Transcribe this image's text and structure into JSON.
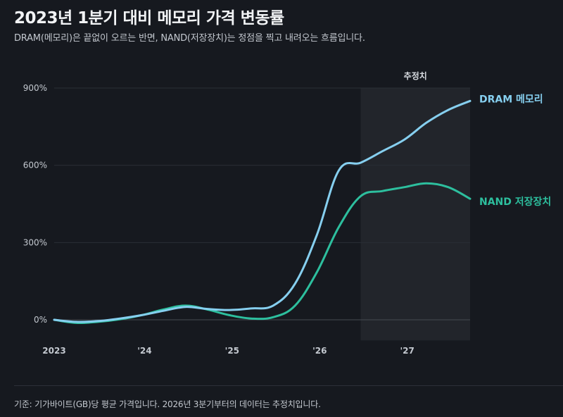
{
  "title": "2023년 1분기 대비 메모리 가격 변동률",
  "subtitle": "DRAM(메모리)은 끝없이 오르는 반면, NAND(저장장치)는 정점을 찍고 내려오는 흐름입니다.",
  "footer": "기준: 기가바이트(GB)당 평균 가격입니다. 2026년 3분기부터의 데이터는 추정치입니다.",
  "colors": {
    "background": "#16191f",
    "dram": "#86cfef",
    "nand": "#2dbf9e",
    "forecast_band": "#22252b",
    "grid": "#2a2e35"
  },
  "chart_data": {
    "type": "line",
    "ylim": [
      -80,
      900
    ],
    "y_ticks": [
      {
        "value": 0,
        "label": "0%"
      },
      {
        "value": 300,
        "label": "300%"
      },
      {
        "value": 600,
        "label": "600%"
      },
      {
        "value": 900,
        "label": "900%"
      }
    ],
    "x_range": [
      "2023-01",
      "2027-10"
    ],
    "x_ticks": [
      {
        "value": "2023-01",
        "label": "2023"
      },
      {
        "value": "2024-01",
        "label": "'24"
      },
      {
        "value": "2025-01",
        "label": "'25"
      },
      {
        "value": "2026-01",
        "label": "'26"
      },
      {
        "value": "2027-01",
        "label": "'27"
      }
    ],
    "forecast": {
      "start": "2026-07",
      "end": "2027-10",
      "label": "추정치"
    },
    "series": [
      {
        "name": "DRAM 메모리",
        "color": "#86cfef",
        "points": [
          [
            "2023-01",
            0
          ],
          [
            "2023-04",
            -8
          ],
          [
            "2023-07",
            -5
          ],
          [
            "2023-10",
            5
          ],
          [
            "2024-01",
            18
          ],
          [
            "2024-04",
            35
          ],
          [
            "2024-07",
            50
          ],
          [
            "2024-10",
            42
          ],
          [
            "2025-01",
            38
          ],
          [
            "2025-04",
            44
          ],
          [
            "2025-07",
            55
          ],
          [
            "2025-10",
            140
          ],
          [
            "2026-01",
            330
          ],
          [
            "2026-04",
            580
          ],
          [
            "2026-07",
            610
          ],
          [
            "2026-10",
            655
          ],
          [
            "2027-01",
            700
          ],
          [
            "2027-04",
            765
          ],
          [
            "2027-07",
            815
          ],
          [
            "2027-10",
            850
          ]
        ]
      },
      {
        "name": "NAND 저장장치",
        "color": "#2dbf9e",
        "points": [
          [
            "2023-01",
            0
          ],
          [
            "2023-04",
            -12
          ],
          [
            "2023-07",
            -8
          ],
          [
            "2023-10",
            2
          ],
          [
            "2024-01",
            18
          ],
          [
            "2024-04",
            40
          ],
          [
            "2024-07",
            55
          ],
          [
            "2024-10",
            40
          ],
          [
            "2025-01",
            18
          ],
          [
            "2025-04",
            5
          ],
          [
            "2025-07",
            10
          ],
          [
            "2025-10",
            55
          ],
          [
            "2026-01",
            185
          ],
          [
            "2026-04",
            360
          ],
          [
            "2026-07",
            480
          ],
          [
            "2026-10",
            500
          ],
          [
            "2027-01",
            515
          ],
          [
            "2027-04",
            530
          ],
          [
            "2027-07",
            515
          ],
          [
            "2027-10",
            470
          ]
        ]
      }
    ]
  }
}
